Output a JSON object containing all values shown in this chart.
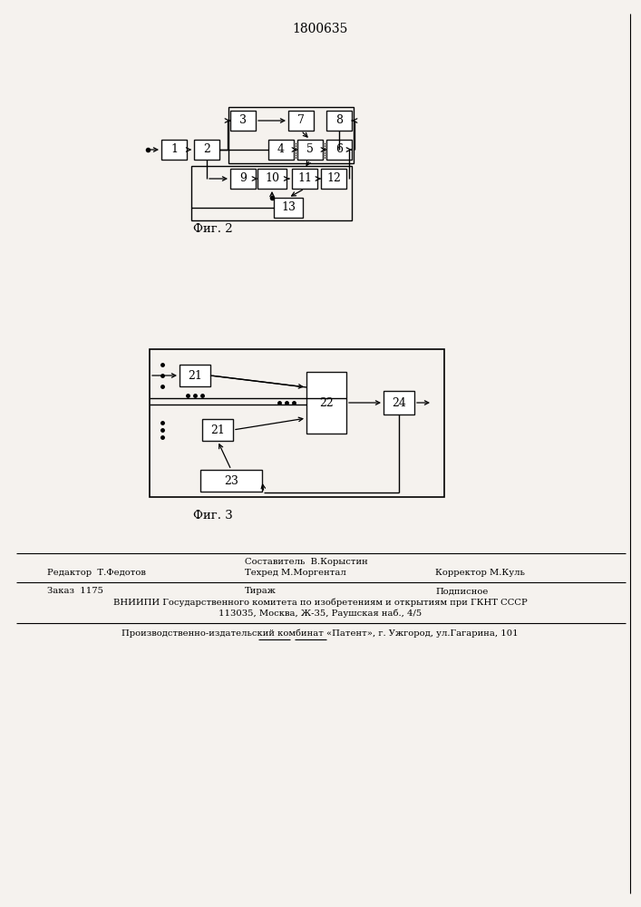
{
  "patent_number": "1800635",
  "fig2_label": "Фиг. 2",
  "fig3_label": "Фиг. 3",
  "bg_color": "#f5f2ee",
  "box_edge": "#111111",
  "footer": {
    "editor": "Редактор  Т.Федотов",
    "compiler": "Составитель  В.Корыстин",
    "techred": "Техред М.Моргентал",
    "corrector": "Корректор М.Куль",
    "order": "Заказ  1175",
    "tirazh": "Тираж",
    "podpisnoe": "Подписное",
    "vniiipi": "ВНИИПИ Государственного комитета по изобретениям и открытиям при ГКНТ СССР",
    "address": "113035, Москва, Ж-35, Раушская наб., 4/5",
    "publisher": "Производственно-издательский комбинат «Патент», г. Ужгород, ул.Гагарина, 101"
  }
}
